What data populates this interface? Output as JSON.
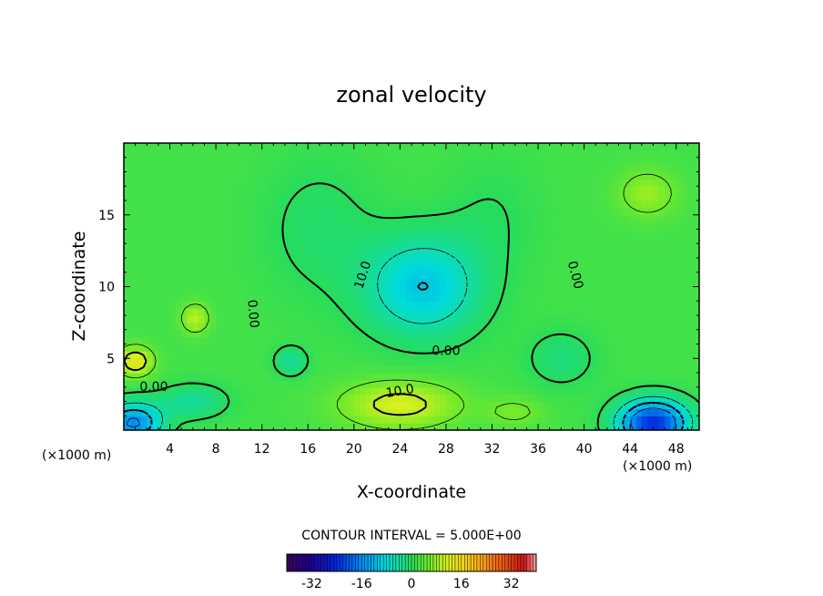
{
  "chart_data": {
    "type": "heatmap",
    "title": "zonal velocity",
    "xlabel": "X-coordinate",
    "ylabel": "Z-coordinate",
    "x_units": "(×1000 m)",
    "y_units": "(×1000 m)",
    "xlim": [
      0,
      50
    ],
    "ylim": [
      0,
      20
    ],
    "x_ticks": [
      4,
      8,
      12,
      16,
      20,
      24,
      28,
      32,
      36,
      40,
      44,
      48
    ],
    "y_ticks": [
      5,
      10,
      15
    ],
    "grid": false,
    "colormap": "rainbow",
    "contour_interval_label": "CONTOUR INTERVAL = 5.000E+00",
    "colorbar": {
      "min": -40,
      "max": 40,
      "ticks": [
        -32,
        -16,
        0,
        16,
        32
      ],
      "tick_labels": [
        "-32",
        "-16",
        "0",
        "16",
        "32"
      ],
      "placement": "bottom"
    },
    "contour_labels": [
      {
        "text": "0.00",
        "x": 2.6,
        "y": 3.0,
        "angle": 0
      },
      {
        "text": "0.00",
        "x": 11.2,
        "y": 8.1,
        "angle": 85
      },
      {
        "text": "10.0",
        "x": 20.8,
        "y": 10.8,
        "angle": -72
      },
      {
        "text": "0.00",
        "x": 28.0,
        "y": 5.5,
        "angle": 0
      },
      {
        "text": "10.0",
        "x": 24.0,
        "y": 2.7,
        "angle": -10
      },
      {
        "text": "0.00",
        "x": 39.2,
        "y": 10.8,
        "angle": 75
      }
    ]
  }
}
